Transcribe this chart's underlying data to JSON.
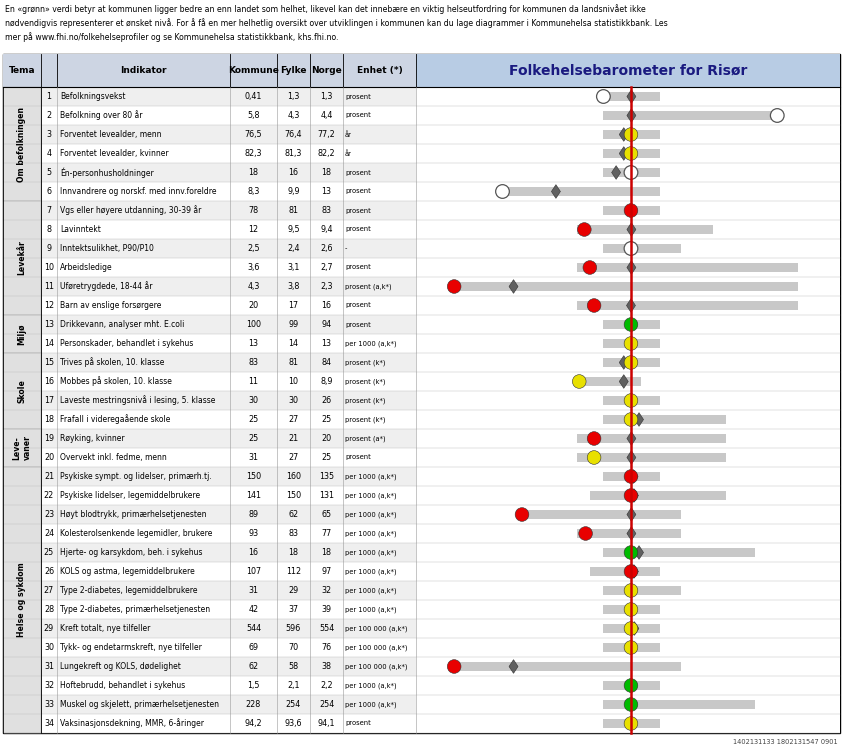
{
  "header_text": "En «grønn» verdi betyr at kommunen ligger bedre an enn landet som helhet, likevel kan det innebære en viktig helseutfordring for kommunen da landsnivået ikke\nnødvendigvis representerer et ønsket nivå. For å få en mer helhetlig oversikt over utviklingen i kommunen kan du lage diagrammer i Kommunehelsa statistikkbank. Les\nmer på www.fhi.no/folkehelseprofiler og se Kommunehelsa statistikkbank, khs.fhi.no.",
  "chart_title": "Folkehelsebarometer for Risør",
  "footer": "1402131133 1802131547 0901",
  "rows": [
    {
      "num": 1,
      "ind": "Befolkningsvekst",
      "kom": "0,41",
      "fyl": "1,3",
      "nor": "1,3",
      "enh": "prosent",
      "bl": 0.44,
      "br": 0.575,
      "dk": 0.442,
      "dc": "white",
      "dmx": 0.508,
      "dm": true
    },
    {
      "num": 2,
      "ind": "Befolkning over 80 år",
      "kom": "5,8",
      "fyl": "4,3",
      "nor": "4,4",
      "enh": "prosent",
      "bl": 0.44,
      "br": 0.855,
      "dk": 0.852,
      "dc": "white",
      "dmx": 0.508,
      "dm": true
    },
    {
      "num": 3,
      "ind": "Forventet levealder, menn",
      "kom": "76,5",
      "fyl": "76,4",
      "nor": "77,2",
      "enh": "år",
      "bl": 0.44,
      "br": 0.575,
      "dk": 0.507,
      "dc": "yellow",
      "dmx": 0.49,
      "dm": true
    },
    {
      "num": 4,
      "ind": "Forventet levealder, kvinner",
      "kom": "82,3",
      "fyl": "81,3",
      "nor": "82,2",
      "enh": "år",
      "bl": 0.44,
      "br": 0.575,
      "dk": 0.507,
      "dc": "yellow",
      "dmx": 0.49,
      "dm": true
    },
    {
      "num": 5,
      "ind": "Én-personhusholdninger",
      "kom": "18",
      "fyl": "16",
      "nor": "18",
      "enh": "prosent",
      "bl": 0.44,
      "br": 0.575,
      "dk": 0.507,
      "dc": "white",
      "dmx": 0.472,
      "dm": true
    },
    {
      "num": 6,
      "ind": "Innvandrere og norskf. med innv.foreldre",
      "kom": "8,3",
      "fyl": "9,9",
      "nor": "13",
      "enh": "prosent",
      "bl": 0.2,
      "br": 0.575,
      "dk": 0.204,
      "dc": "white",
      "dmx": 0.33,
      "dm": true
    },
    {
      "num": 7,
      "ind": "Vgs eller høyere utdanning, 30-39 år",
      "kom": "78",
      "fyl": "81",
      "nor": "83",
      "enh": "prosent",
      "bl": 0.44,
      "br": 0.575,
      "dk": 0.507,
      "dc": "red",
      "dmx": 0.507,
      "dm": true
    },
    {
      "num": 8,
      "ind": "Lavinntekt",
      "kom": "12",
      "fyl": "9,5",
      "nor": "9,4",
      "enh": "prosent",
      "bl": 0.38,
      "br": 0.7,
      "dk": 0.397,
      "dc": "red",
      "dmx": 0.508,
      "dm": true
    },
    {
      "num": 9,
      "ind": "Inntektsulikhet, P90/P10",
      "kom": "2,5",
      "fyl": "2,4",
      "nor": "2,6",
      "enh": "-",
      "bl": 0.44,
      "br": 0.625,
      "dk": 0.507,
      "dc": "white",
      "dmx": 0.505,
      "dm": true
    },
    {
      "num": 10,
      "ind": "Arbeidsledige",
      "kom": "3,6",
      "fyl": "3,1",
      "nor": "2,7",
      "enh": "prosent",
      "bl": 0.38,
      "br": 0.9,
      "dk": 0.41,
      "dc": "red",
      "dmx": 0.508,
      "dm": true
    },
    {
      "num": 11,
      "ind": "Uføretrygdede, 18-44 år",
      "kom": "4,3",
      "fyl": "3,8",
      "nor": "2,3",
      "enh": "prosent (a,k*)",
      "bl": 0.08,
      "br": 0.9,
      "dk": 0.09,
      "dc": "red",
      "dmx": 0.23,
      "dm": true
    },
    {
      "num": 12,
      "ind": "Barn av enslige forsørgere",
      "kom": "20",
      "fyl": "17",
      "nor": "16",
      "enh": "prosent",
      "bl": 0.38,
      "br": 0.9,
      "dk": 0.42,
      "dc": "red",
      "dmx": 0.507,
      "dm": true
    },
    {
      "num": 13,
      "ind": "Drikkevann, analyser mht. E.coli",
      "kom": "100",
      "fyl": "99",
      "nor": "94",
      "enh": "prosent",
      "bl": 0.44,
      "br": 0.575,
      "dk": 0.507,
      "dc": "green",
      "dmx": 0.508,
      "dm": false
    },
    {
      "num": 14,
      "ind": "Personskader, behandlet i sykehus",
      "kom": "13",
      "fyl": "14",
      "nor": "13",
      "enh": "per 1000 (a,k*)",
      "bl": 0.44,
      "br": 0.575,
      "dk": 0.507,
      "dc": "yellow",
      "dmx": 0.508,
      "dm": true
    },
    {
      "num": 15,
      "ind": "Trives på skolen, 10. klasse",
      "kom": "83",
      "fyl": "81",
      "nor": "84",
      "enh": "prosent (k*)",
      "bl": 0.44,
      "br": 0.575,
      "dk": 0.507,
      "dc": "yellow",
      "dmx": 0.49,
      "dm": true
    },
    {
      "num": 16,
      "ind": "Mobbes på skolen, 10. klasse",
      "kom": "11",
      "fyl": "10",
      "nor": "8,9",
      "enh": "prosent (k*)",
      "bl": 0.38,
      "br": 0.53,
      "dk": 0.385,
      "dc": "yellow",
      "dmx": 0.49,
      "dm": true
    },
    {
      "num": 17,
      "ind": "Laveste mestringsnivå i lesing, 5. klasse",
      "kom": "30",
      "fyl": "30",
      "nor": "26",
      "enh": "prosent (k*)",
      "bl": 0.44,
      "br": 0.575,
      "dk": 0.507,
      "dc": "yellow",
      "dmx": 0.508,
      "dm": false
    },
    {
      "num": 18,
      "ind": "Frafall i videregaående skole",
      "kom": "25",
      "fyl": "27",
      "nor": "25",
      "enh": "prosent (k*)",
      "bl": 0.44,
      "br": 0.73,
      "dk": 0.507,
      "dc": "yellow",
      "dmx": 0.526,
      "dm": true
    },
    {
      "num": 19,
      "ind": "Røyking, kvinner",
      "kom": "25",
      "fyl": "21",
      "nor": "20",
      "enh": "prosent (a*)",
      "bl": 0.38,
      "br": 0.73,
      "dk": 0.42,
      "dc": "red",
      "dmx": 0.508,
      "dm": true
    },
    {
      "num": 20,
      "ind": "Overvekt inkl. fedme, menn",
      "kom": "31",
      "fyl": "27",
      "nor": "25",
      "enh": "prosent",
      "bl": 0.38,
      "br": 0.73,
      "dk": 0.42,
      "dc": "yellow",
      "dmx": 0.508,
      "dm": true
    },
    {
      "num": 21,
      "ind": "Psykiske sympt. og lidelser, primærh.tj.",
      "kom": "150",
      "fyl": "160",
      "nor": "135",
      "enh": "per 1000 (a,k*)",
      "bl": 0.44,
      "br": 0.575,
      "dk": 0.507,
      "dc": "red",
      "dmx": 0.513,
      "dm": true
    },
    {
      "num": 22,
      "ind": "Psykiske lidelser, legemiddelbrukere",
      "kom": "141",
      "fyl": "150",
      "nor": "131",
      "enh": "per 1000 (a,k*)",
      "bl": 0.41,
      "br": 0.73,
      "dk": 0.507,
      "dc": "red",
      "dmx": 0.514,
      "dm": true
    },
    {
      "num": 23,
      "ind": "Høyt blodtrykk, primærhelsetjenesten",
      "kom": "89",
      "fyl": "62",
      "nor": "65",
      "enh": "per 1000 (a,k*)",
      "bl": 0.24,
      "br": 0.625,
      "dk": 0.25,
      "dc": "red",
      "dmx": 0.508,
      "dm": true
    },
    {
      "num": 24,
      "ind": "Kolesterolsenkende legemidler, brukere",
      "kom": "93",
      "fyl": "83",
      "nor": "77",
      "enh": "per 1000 (a,k*)",
      "bl": 0.38,
      "br": 0.625,
      "dk": 0.4,
      "dc": "red",
      "dmx": 0.508,
      "dm": true
    },
    {
      "num": 25,
      "ind": "Hjerte- og karsykdom, beh. i sykehus",
      "kom": "16",
      "fyl": "18",
      "nor": "18",
      "enh": "per 1000 (a,k*)",
      "bl": 0.44,
      "br": 0.8,
      "dk": 0.507,
      "dc": "green",
      "dmx": 0.526,
      "dm": true
    },
    {
      "num": 26,
      "ind": "KOLS og astma, legemiddelbrukere",
      "kom": "107",
      "fyl": "112",
      "nor": "97",
      "enh": "per 1000 (a,k*)",
      "bl": 0.41,
      "br": 0.575,
      "dk": 0.507,
      "dc": "red",
      "dmx": 0.514,
      "dm": true
    },
    {
      "num": 27,
      "ind": "Type 2-diabetes, legemiddelbrukere",
      "kom": "31",
      "fyl": "29",
      "nor": "32",
      "enh": "per 1000 (a,k*)",
      "bl": 0.44,
      "br": 0.625,
      "dk": 0.507,
      "dc": "yellow",
      "dmx": 0.508,
      "dm": true
    },
    {
      "num": 28,
      "ind": "Type 2-diabetes, primærhelsetjenesten",
      "kom": "42",
      "fyl": "37",
      "nor": "39",
      "enh": "per 1000 (a,k*)",
      "bl": 0.44,
      "br": 0.575,
      "dk": 0.507,
      "dc": "yellow",
      "dmx": 0.508,
      "dm": true
    },
    {
      "num": 29,
      "ind": "Kreft totalt, nye tilfeller",
      "kom": "544",
      "fyl": "596",
      "nor": "554",
      "enh": "per 100 000 (a,k*)",
      "bl": 0.44,
      "br": 0.575,
      "dk": 0.507,
      "dc": "yellow",
      "dmx": 0.515,
      "dm": true
    },
    {
      "num": 30,
      "ind": "Tykk- og endetarmskreft, nye tilfeller",
      "kom": "69",
      "fyl": "70",
      "nor": "76",
      "enh": "per 100 000 (a,k*)",
      "bl": 0.44,
      "br": 0.575,
      "dk": 0.507,
      "dc": "yellow",
      "dmx": 0.508,
      "dm": false
    },
    {
      "num": 31,
      "ind": "Lungekreft og KOLS, dødelighet",
      "kom": "62",
      "fyl": "58",
      "nor": "38",
      "enh": "per 100 000 (a,k*)",
      "bl": 0.08,
      "br": 0.625,
      "dk": 0.09,
      "dc": "red",
      "dmx": 0.23,
      "dm": true
    },
    {
      "num": 32,
      "ind": "Hoftebrudd, behandlet i sykehus",
      "kom": "1,5",
      "fyl": "2,1",
      "nor": "2,2",
      "enh": "per 1000 (a,k*)",
      "bl": 0.44,
      "br": 0.575,
      "dk": 0.507,
      "dc": "green",
      "dmx": 0.505,
      "dm": true
    },
    {
      "num": 33,
      "ind": "Muskel og skjelett, primærhelsetjenesten",
      "kom": "228",
      "fyl": "254",
      "nor": "254",
      "enh": "per 1000 (a,k*)",
      "bl": 0.44,
      "br": 0.8,
      "dk": 0.507,
      "dc": "green",
      "dmx": 0.508,
      "dm": false
    },
    {
      "num": 34,
      "ind": "Vaksinasjonsdekning, MMR, 6-åringer",
      "kom": "94,2",
      "fyl": "93,6",
      "nor": "94,1",
      "enh": "prosent",
      "bl": 0.44,
      "br": 0.575,
      "dk": 0.507,
      "dc": "yellow",
      "dmx": 0.508,
      "dm": false
    }
  ],
  "tema_spans": [
    {
      "r0": 0,
      "r1": 5,
      "label": "Om befolkningen"
    },
    {
      "r0": 6,
      "r1": 11,
      "label": "Levekår"
    },
    {
      "r0": 12,
      "r1": 13,
      "label": "Miljø"
    },
    {
      "r0": 14,
      "r1": 17,
      "label": "Skole"
    },
    {
      "r0": 18,
      "r1": 19,
      "label": "Leve-\nvaner"
    },
    {
      "r0": 20,
      "r1": 33,
      "label": "Helse og sykdom"
    }
  ],
  "dot_colors": {
    "red": "#e80000",
    "yellow": "#e8e000",
    "green": "#00bb00",
    "white": "#ffffff"
  },
  "col_header_bg": "#cdd5e3",
  "chart_header_bg": "#b8cce4",
  "row_bg_odd": "#efefef",
  "row_bg_even": "#ffffff",
  "tema_bg": "#e0e0e0",
  "red_line_x": 0.508,
  "bar_color": "#c8c8c8",
  "diamond_color": "#606060",
  "outer_border_color": "#000000"
}
